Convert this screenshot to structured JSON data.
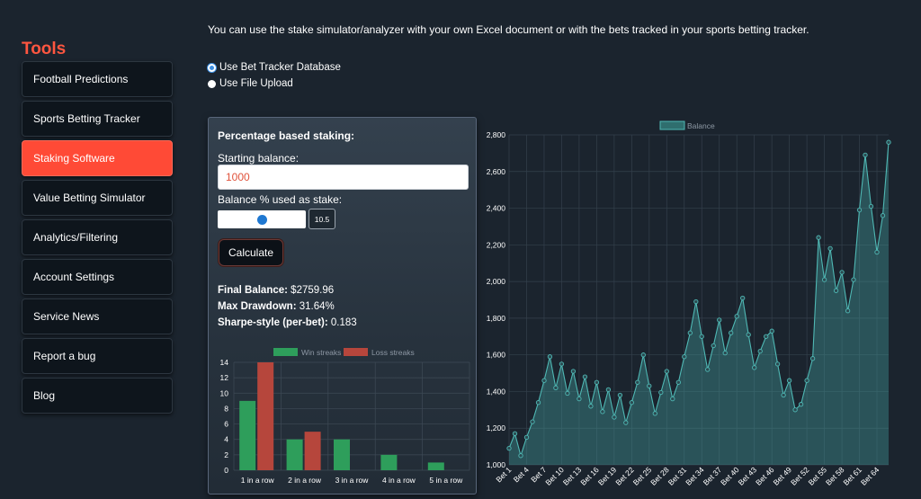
{
  "sidebar": {
    "title": "Tools",
    "items": [
      {
        "label": "Football Predictions",
        "name": "sidebar-item-football-predictions",
        "active": false
      },
      {
        "label": "Sports Betting Tracker",
        "name": "sidebar-item-sports-betting-tracker",
        "active": false
      },
      {
        "label": "Staking Software",
        "name": "sidebar-item-staking-software",
        "active": true
      },
      {
        "label": "Value Betting Simulator",
        "name": "sidebar-item-value-betting-simulator",
        "active": false
      },
      {
        "label": "Analytics/Filtering",
        "name": "sidebar-item-analytics-filtering",
        "active": false
      },
      {
        "label": "Account Settings",
        "name": "sidebar-item-account-settings",
        "active": false
      },
      {
        "label": "Service News",
        "name": "sidebar-item-service-news",
        "active": false
      },
      {
        "label": "Report a bug",
        "name": "sidebar-item-report-a-bug",
        "active": false
      },
      {
        "label": "Blog",
        "name": "sidebar-item-blog",
        "active": false
      }
    ]
  },
  "intro": "You can use the stake simulator/analyzer with your own Excel document or with the bets tracked in your sports betting tracker.",
  "source_options": [
    {
      "label": "Use Bet Tracker Database",
      "checked": true
    },
    {
      "label": "Use File Upload",
      "checked": false
    }
  ],
  "panel": {
    "heading": "Percentage based staking:",
    "starting_balance_label": "Starting balance:",
    "starting_balance_value": "1000",
    "stake_pct_label": "Balance % used as stake:",
    "stake_pct_value": "10.5",
    "stake_pct_fraction": 0.5,
    "calculate_label": "Calculate",
    "final_balance_label": "Final Balance:",
    "final_balance_value": "$2759.96",
    "max_drawdown_label": "Max Drawdown:",
    "max_drawdown_value": "31.64%",
    "sharpe_label": "Sharpe-style (per-bet):",
    "sharpe_value": "0.183"
  },
  "colors": {
    "accent": "#ff4a36",
    "win": "#2e9e5b",
    "loss": "#b6463c",
    "balance_line": "#4fb8b4"
  },
  "chart_data": [
    {
      "type": "bar",
      "categories": [
        "1 in a row",
        "2 in a row",
        "3 in a row",
        "4 in a row",
        "5 in a row"
      ],
      "series": [
        {
          "name": "Win streaks",
          "values": [
            9,
            4,
            4,
            2,
            1
          ]
        },
        {
          "name": "Loss streaks",
          "values": [
            14,
            5,
            0,
            0,
            0
          ]
        }
      ],
      "ylim": [
        0,
        14
      ],
      "yticks": [
        0,
        2,
        4,
        6,
        8,
        10,
        12,
        14
      ],
      "grid": true,
      "legend": "top"
    },
    {
      "type": "area",
      "series": [
        {
          "name": "Balance",
          "values": [
            1090,
            1170,
            1050,
            1150,
            1235,
            1340,
            1460,
            1590,
            1420,
            1550,
            1390,
            1510,
            1360,
            1480,
            1320,
            1450,
            1290,
            1410,
            1260,
            1380,
            1230,
            1340,
            1450,
            1600,
            1430,
            1280,
            1395,
            1510,
            1360,
            1450,
            1590,
            1720,
            1890,
            1700,
            1520,
            1650,
            1790,
            1610,
            1720,
            1810,
            1910,
            1710,
            1530,
            1620,
            1700,
            1730,
            1550,
            1380,
            1460,
            1300,
            1330,
            1460,
            1580,
            2240,
            2010,
            2180,
            1950,
            2050,
            1840,
            2010,
            2390,
            2690,
            2410,
            2160,
            2360,
            2760
          ]
        }
      ],
      "x_tick_labels": [
        "Bet 1",
        "Bet 4",
        "Bet 7",
        "Bet 10",
        "Bet 13",
        "Bet 16",
        "Bet 19",
        "Bet 22",
        "Bet 25",
        "Bet 28",
        "Bet 31",
        "Bet 34",
        "Bet 37",
        "Bet 40",
        "Bet 43",
        "Bet 46",
        "Bet 49",
        "Bet 52",
        "Bet 55",
        "Bet 58",
        "Bet 61",
        "Bet 64"
      ],
      "ylim": [
        1000,
        2800
      ],
      "yticks": [
        "1,000",
        "1,200",
        "1,400",
        "1,600",
        "1,800",
        "2,000",
        "2,200",
        "2,400",
        "2,600",
        "2,800"
      ],
      "grid": true,
      "legend": "top"
    }
  ]
}
